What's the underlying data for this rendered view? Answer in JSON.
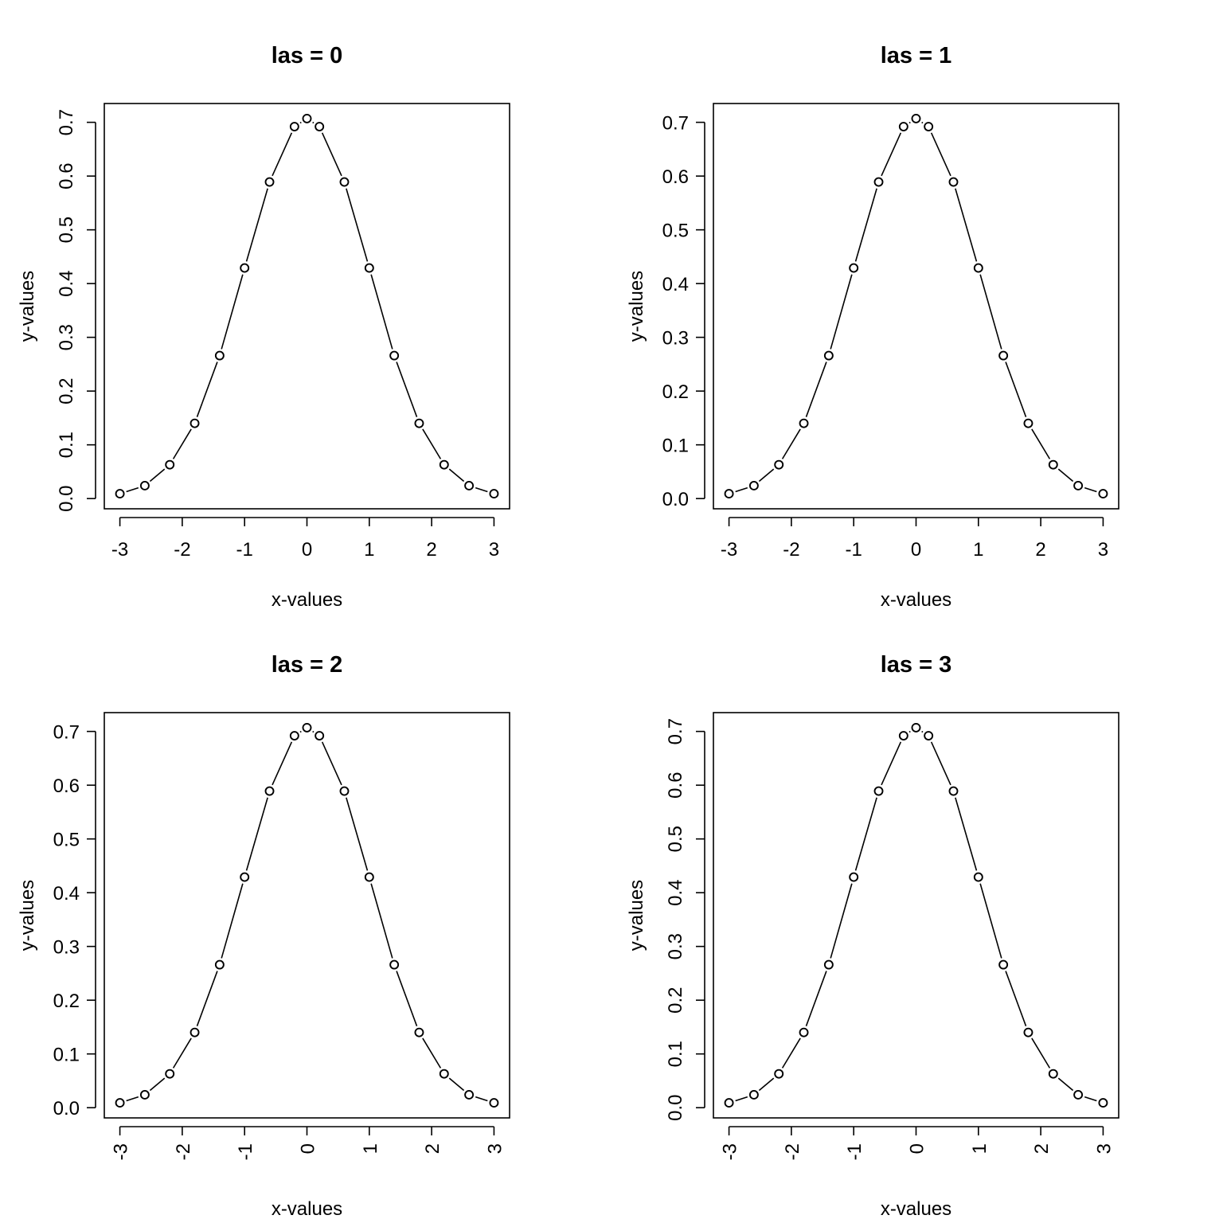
{
  "chart_data": [
    {
      "type": "line",
      "title": "las = 0",
      "xlabel": "x-values",
      "ylabel": "y-values",
      "x": [
        -3,
        -2.6,
        -2.2,
        -1.8,
        -1.4,
        -1,
        -0.6,
        -0.2,
        0,
        0.2,
        0.6,
        1,
        1.4,
        1.8,
        2.2,
        2.6,
        3
      ],
      "y": [
        0.009,
        0.024,
        0.063,
        0.14,
        0.266,
        0.429,
        0.589,
        0.692,
        0.707,
        0.692,
        0.589,
        0.429,
        0.266,
        0.14,
        0.063,
        0.024,
        0.009
      ],
      "xticks": [
        "-3",
        "-2",
        "-1",
        "0",
        "1",
        "2",
        "3"
      ],
      "yticks": [
        "0.0",
        "0.1",
        "0.2",
        "0.3",
        "0.4",
        "0.5",
        "0.6",
        "0.7"
      ],
      "xlim": [
        -3.25,
        3.25
      ],
      "ylim": [
        -0.019,
        0.735
      ],
      "las": 0,
      "grid": false
    },
    {
      "type": "line",
      "title": "las = 1",
      "xlabel": "x-values",
      "ylabel": "y-values",
      "x": [
        -3,
        -2.6,
        -2.2,
        -1.8,
        -1.4,
        -1,
        -0.6,
        -0.2,
        0,
        0.2,
        0.6,
        1,
        1.4,
        1.8,
        2.2,
        2.6,
        3
      ],
      "y": [
        0.009,
        0.024,
        0.063,
        0.14,
        0.266,
        0.429,
        0.589,
        0.692,
        0.707,
        0.692,
        0.589,
        0.429,
        0.266,
        0.14,
        0.063,
        0.024,
        0.009
      ],
      "xticks": [
        "-3",
        "-2",
        "-1",
        "0",
        "1",
        "2",
        "3"
      ],
      "yticks": [
        "0.0",
        "0.1",
        "0.2",
        "0.3",
        "0.4",
        "0.5",
        "0.6",
        "0.7"
      ],
      "xlim": [
        -3.25,
        3.25
      ],
      "ylim": [
        -0.019,
        0.735
      ],
      "las": 1,
      "grid": false
    },
    {
      "type": "line",
      "title": "las = 2",
      "xlabel": "x-values",
      "ylabel": "y-values",
      "x": [
        -3,
        -2.6,
        -2.2,
        -1.8,
        -1.4,
        -1,
        -0.6,
        -0.2,
        0,
        0.2,
        0.6,
        1,
        1.4,
        1.8,
        2.2,
        2.6,
        3
      ],
      "y": [
        0.009,
        0.024,
        0.063,
        0.14,
        0.266,
        0.429,
        0.589,
        0.692,
        0.707,
        0.692,
        0.589,
        0.429,
        0.266,
        0.14,
        0.063,
        0.024,
        0.009
      ],
      "xticks": [
        "-3",
        "-2",
        "-1",
        "0",
        "1",
        "2",
        "3"
      ],
      "yticks": [
        "0.0",
        "0.1",
        "0.2",
        "0.3",
        "0.4",
        "0.5",
        "0.6",
        "0.7"
      ],
      "xlim": [
        -3.25,
        3.25
      ],
      "ylim": [
        -0.019,
        0.735
      ],
      "las": 2,
      "grid": false
    },
    {
      "type": "line",
      "title": "las = 3",
      "xlabel": "x-values",
      "ylabel": "y-values",
      "x": [
        -3,
        -2.6,
        -2.2,
        -1.8,
        -1.4,
        -1,
        -0.6,
        -0.2,
        0,
        0.2,
        0.6,
        1,
        1.4,
        1.8,
        2.2,
        2.6,
        3
      ],
      "y": [
        0.009,
        0.024,
        0.063,
        0.14,
        0.266,
        0.429,
        0.589,
        0.692,
        0.707,
        0.692,
        0.589,
        0.429,
        0.266,
        0.14,
        0.063,
        0.024,
        0.009
      ],
      "xticks": [
        "-3",
        "-2",
        "-1",
        "0",
        "1",
        "2",
        "3"
      ],
      "yticks": [
        "0.0",
        "0.1",
        "0.2",
        "0.3",
        "0.4",
        "0.5",
        "0.6",
        "0.7"
      ],
      "xlim": [
        -3.25,
        3.25
      ],
      "ylim": [
        -0.019,
        0.735
      ],
      "las": 3,
      "grid": false
    }
  ]
}
